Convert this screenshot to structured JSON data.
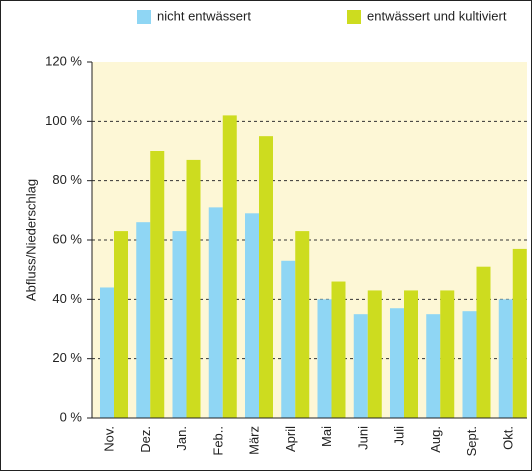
{
  "chart_data": {
    "type": "bar",
    "y_label": "Abfluss/Niederschlag",
    "categories": [
      "Nov.",
      "Dez.",
      "Jan.",
      "Feb..",
      "März",
      "April",
      "Mai",
      "Juni",
      "Juli",
      "Aug.",
      "Sept.",
      "Okt."
    ],
    "series": [
      {
        "name": "nicht entwässert",
        "color": "#8fd6f4",
        "values": [
          44,
          66,
          63,
          71,
          69,
          53,
          40,
          35,
          37,
          35,
          36,
          40
        ]
      },
      {
        "name": "entwässert und kultiviert",
        "color": "#cddc1f",
        "values": [
          63,
          90,
          87,
          102,
          95,
          63,
          46,
          43,
          43,
          43,
          51,
          57
        ]
      }
    ],
    "ylim": [
      0,
      120
    ],
    "yticks": [
      {
        "value": 0,
        "label": "0 %"
      },
      {
        "value": 20,
        "label": "20 %"
      },
      {
        "value": 40,
        "label": "40 %"
      },
      {
        "value": 60,
        "label": "60 %"
      },
      {
        "value": 80,
        "label": "80 %"
      },
      {
        "value": 100,
        "label": "100 %"
      },
      {
        "value": 120,
        "label": "120 %"
      }
    ],
    "grid": true
  }
}
